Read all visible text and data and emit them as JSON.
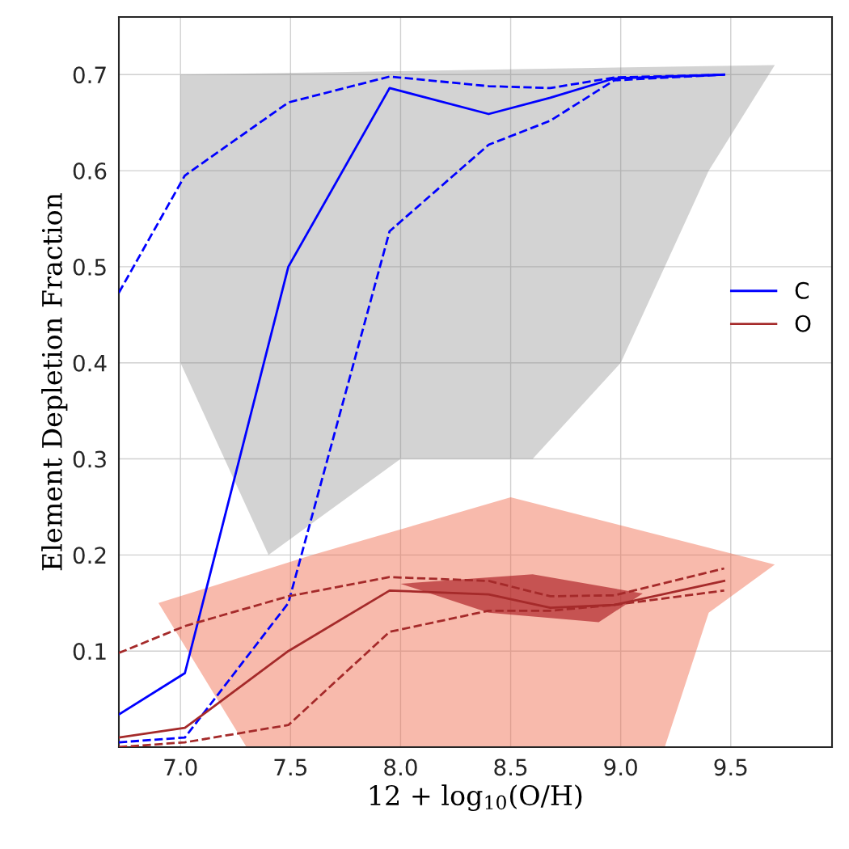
{
  "chart_data": {
    "type": "line",
    "xlabel": "12 + log$_{10}$(O/H)",
    "ylabel": "Element Depletion Fraction",
    "xlim": [
      6.72,
      9.96
    ],
    "ylim": [
      0.0,
      0.76
    ],
    "xticks": [
      {
        "value": 7,
        "label": "7.0"
      },
      7.5,
      {
        "value": 8,
        "label": "8.0"
      },
      8.5,
      {
        "value": 9,
        "label": "9.0"
      },
      9.5
    ],
    "yticks": [
      0.1,
      0.2,
      0.3,
      0.4,
      0.5,
      0.6,
      0.7
    ],
    "grid": true,
    "legend": "right",
    "marker": "none",
    "x": [
      6.72,
      7.02,
      7.49,
      7.95,
      8.4,
      8.68,
      8.97,
      9.47
    ],
    "series": [
      {
        "name": "C",
        "color": "#0000ff",
        "line_style": "solid",
        "values": [
          0.034,
          0.077,
          0.5,
          0.686,
          0.659,
          0.676,
          0.696,
          0.7
        ]
      },
      {
        "color": "#0000ff",
        "line_style": "dashed",
        "values": [
          0.473,
          0.595,
          0.671,
          0.698,
          0.688,
          0.686,
          0.697,
          0.7
        ]
      },
      {
        "color": "#0000ff",
        "line_style": "dashed",
        "values": [
          0.005,
          0.01,
          0.15,
          0.537,
          0.627,
          0.652,
          0.694,
          0.7
        ]
      },
      {
        "name": "O",
        "color": "#a52a2a",
        "line_style": "solid",
        "values": [
          0.01,
          0.02,
          0.1,
          0.163,
          0.159,
          0.145,
          0.148,
          0.173
        ]
      },
      {
        "color": "#a52a2a",
        "line_style": "dashed",
        "values": [
          0.098,
          0.126,
          0.157,
          0.177,
          0.173,
          0.157,
          0.158,
          0.186
        ]
      },
      {
        "color": "#a52a2a",
        "line_style": "dashed",
        "values": [
          0.0,
          0.005,
          0.023,
          0.12,
          0.142,
          0.142,
          0.148,
          0.163
        ]
      }
    ]
  }
}
